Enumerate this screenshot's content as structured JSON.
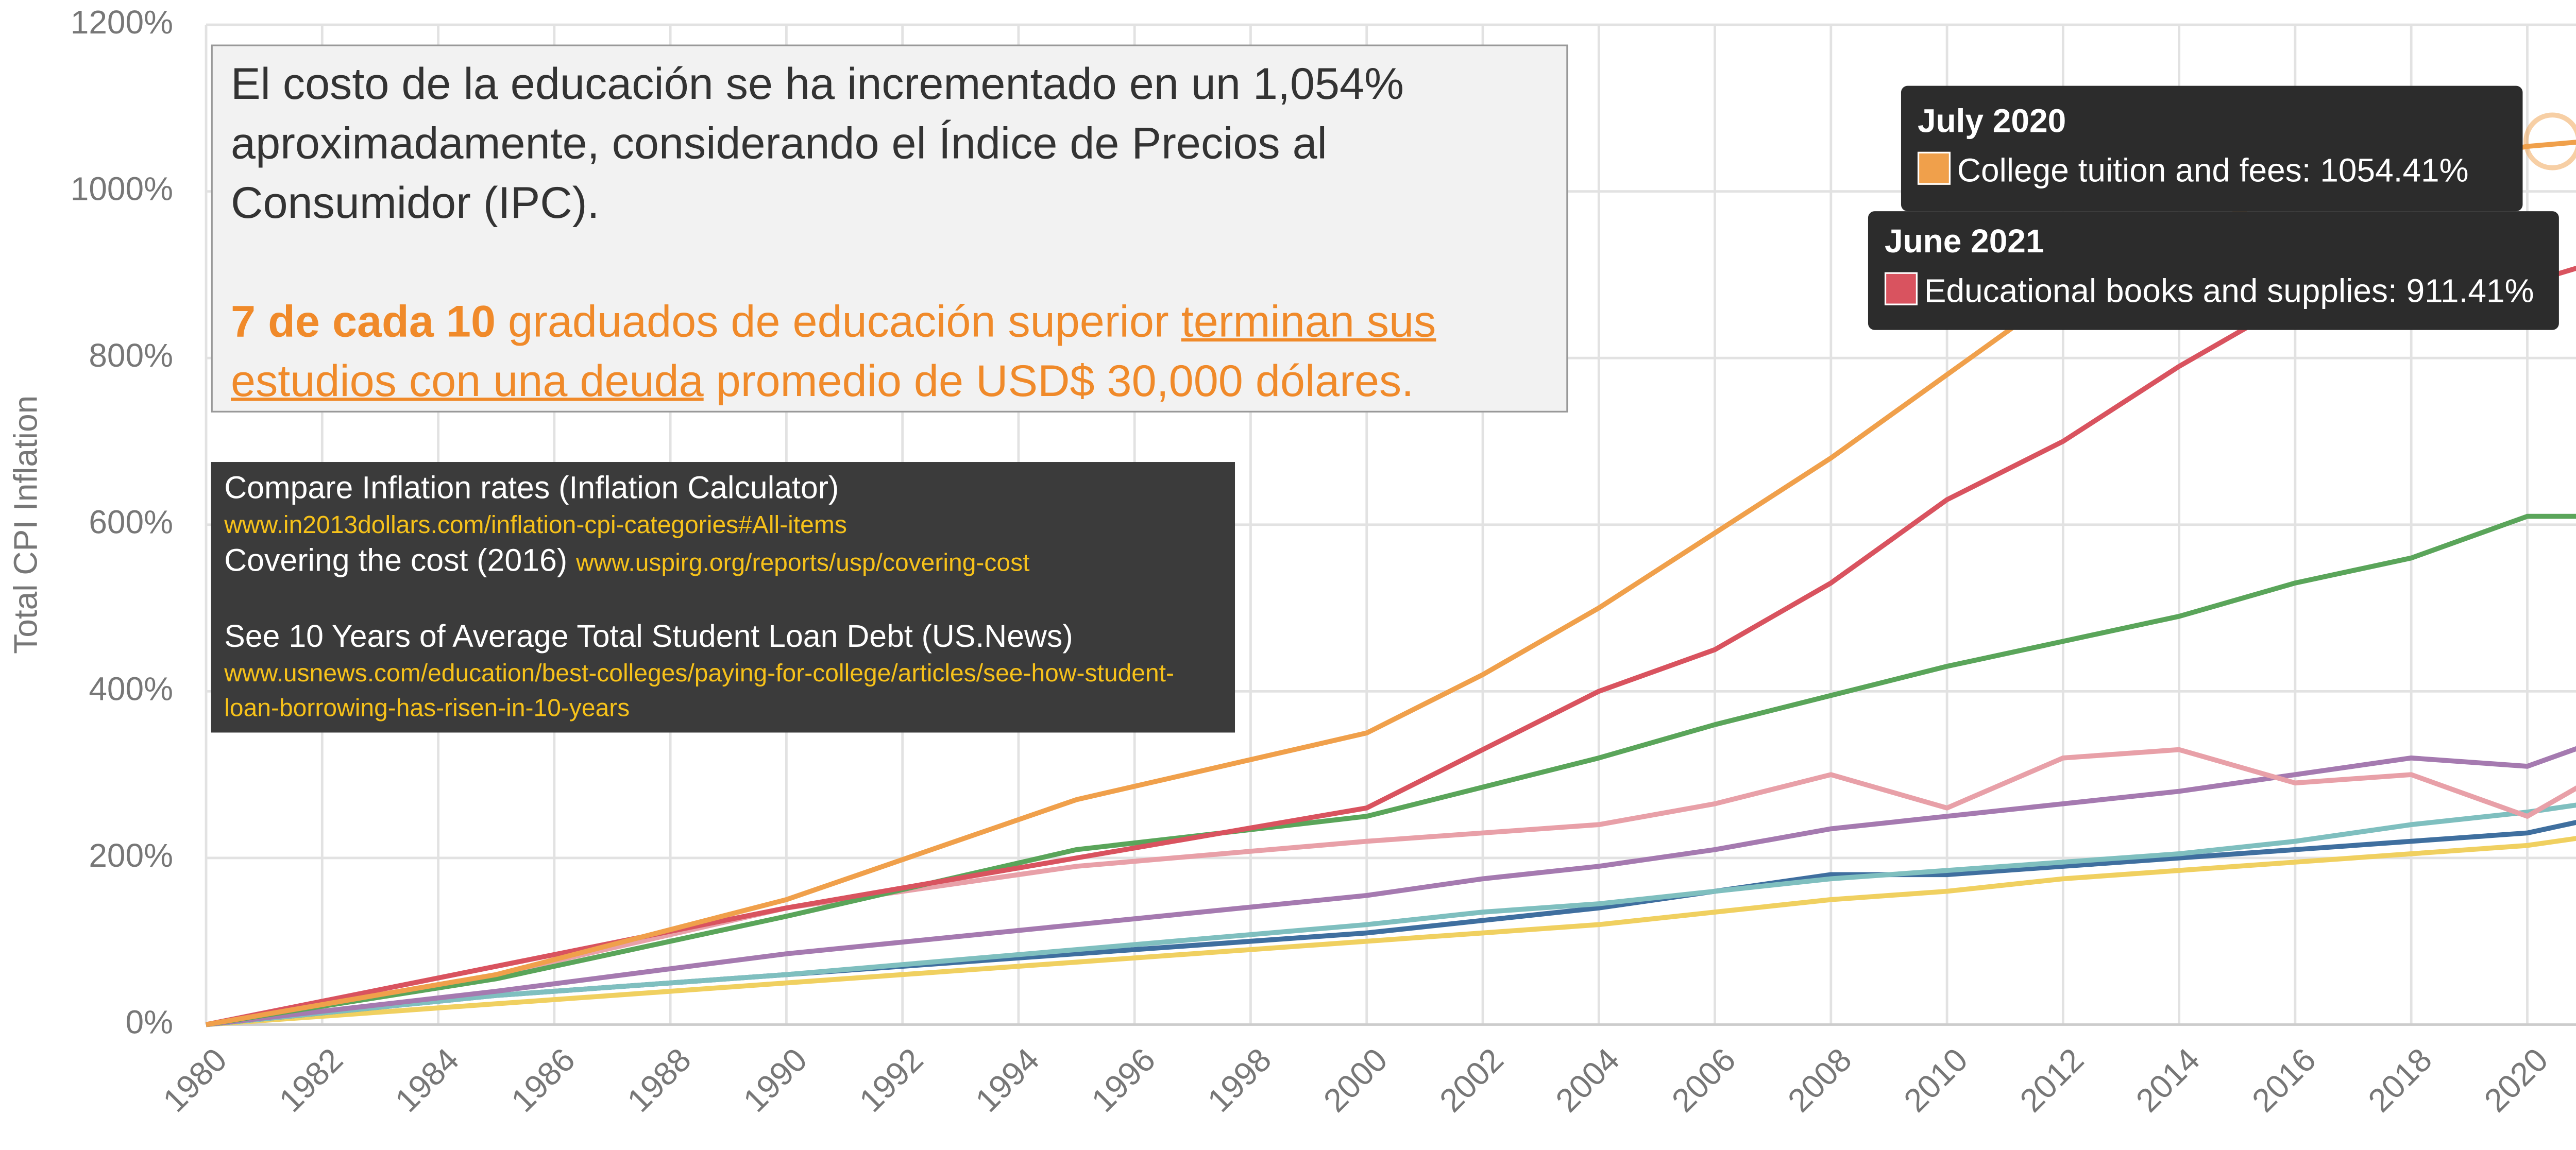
{
  "chart_data": {
    "type": "line",
    "ylabel": "Total CPI Inflation",
    "x": [
      1980,
      1985,
      1990,
      1995,
      2000,
      2002,
      2004,
      2006,
      2008,
      2010,
      2012,
      2014,
      2016,
      2018,
      2020,
      2021
    ],
    "xlim": [
      1980,
      2021
    ],
    "xticks": [
      1980,
      1982,
      1984,
      1986,
      1988,
      1990,
      1992,
      1994,
      1996,
      1998,
      2000,
      2002,
      2004,
      2006,
      2008,
      2010,
      2012,
      2014,
      2016,
      2018,
      2020
    ],
    "ylim": [
      0,
      1200
    ],
    "yticks": [
      {
        "value": 0,
        "label": "0%"
      },
      {
        "value": 200,
        "label": "200%"
      },
      {
        "value": 400,
        "label": "400%"
      },
      {
        "value": 600,
        "label": "600%"
      },
      {
        "value": 800,
        "label": "800%"
      },
      {
        "value": 1000,
        "label": "1000%"
      },
      {
        "value": 1200,
        "label": "1200%"
      }
    ],
    "grid": true,
    "series": [
      {
        "name": "College tuition and fees",
        "color": "#f0a04b",
        "values": [
          0,
          60,
          150,
          270,
          350,
          420,
          500,
          590,
          680,
          780,
          880,
          950,
          1000,
          1030,
          1054,
          1060
        ]
      },
      {
        "name": "Educational books and supplies",
        "color": "#d9535f",
        "values": [
          0,
          70,
          140,
          200,
          260,
          330,
          400,
          450,
          530,
          630,
          700,
          790,
          870,
          910,
          890,
          911
        ]
      },
      {
        "color": "#5aa55a",
        "values": [
          0,
          55,
          130,
          210,
          250,
          285,
          320,
          360,
          395,
          430,
          460,
          490,
          530,
          560,
          610,
          610
        ]
      },
      {
        "color": "#e8a0a8",
        "values": [
          0,
          60,
          140,
          190,
          220,
          230,
          240,
          265,
          300,
          260,
          320,
          330,
          290,
          300,
          250,
          290
        ]
      },
      {
        "color": "#a57ab0",
        "values": [
          0,
          40,
          85,
          120,
          155,
          175,
          190,
          210,
          235,
          250,
          265,
          280,
          300,
          320,
          310,
          335
        ]
      },
      {
        "color": "#7fbfbf",
        "values": [
          0,
          35,
          60,
          90,
          120,
          135,
          145,
          160,
          175,
          185,
          195,
          205,
          220,
          240,
          255,
          265
        ]
      },
      {
        "color": "#3f6f9f",
        "values": [
          0,
          35,
          60,
          85,
          110,
          125,
          140,
          160,
          180,
          180,
          190,
          200,
          210,
          220,
          230,
          245
        ]
      },
      {
        "color": "#f0d060",
        "values": [
          0,
          25,
          50,
          75,
          100,
          110,
          120,
          135,
          150,
          160,
          175,
          185,
          195,
          205,
          215,
          225
        ]
      }
    ],
    "tooltips": [
      {
        "title": "July 2020",
        "text": "College tuition and fees: 1054.41%",
        "color": "#f0a04b"
      },
      {
        "title": "June 2021",
        "text": "Educational books and supplies: 911.41%",
        "color": "#d9535f"
      }
    ]
  },
  "note": {
    "intro": "El costo de la educación se ha incrementado en un 1,054% aproximadamente, considerando el Índice de Precios al Consumidor (IPC).",
    "bold": "7 de cada 10",
    "mid": " graduados de educación superior ",
    "link": "terminan sus estudios con una deuda",
    "end": " promedio de USD$ 30,000 dólares."
  },
  "sources": [
    {
      "title": "Compare Inflation rates (Inflation Calculator)",
      "url": "www.in2013dollars.com/inflation-cpi-categories#All-items"
    },
    {
      "title": "Covering the cost (2016)",
      "url": "www.uspirg.org/reports/usp/covering-cost"
    },
    {
      "title": "See 10 Years of Average Total Student Loan Debt (US.News)",
      "url": "www.usnews.com/education/best-colleges/paying-for-college/articles/see-how-student-loan-borrowing-has-risen-in-10-years"
    }
  ]
}
